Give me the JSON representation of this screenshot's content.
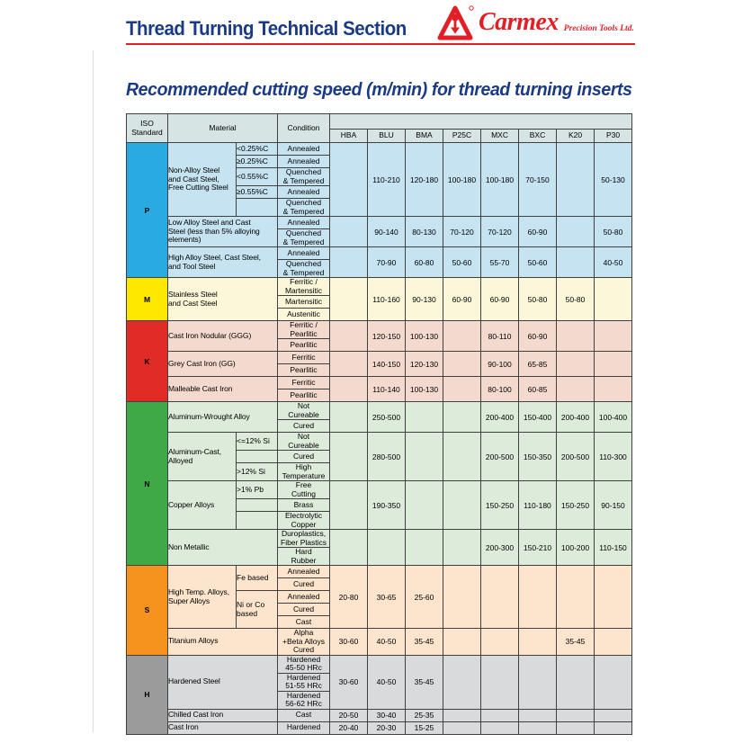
{
  "page": {
    "header": {
      "title": "Thread Turning Technical Section",
      "brand": "Carmex",
      "brand_suffix": "Precision Tools Ltd."
    },
    "section_title": "Recommended cutting speed (m/min) for thread turning inserts"
  },
  "colors": {
    "title_navy": "#1a3a85",
    "brand_red": "#e21f26",
    "header_cell_bg": "#d6e4e3",
    "grid_border": "#404040"
  },
  "table": {
    "headers": {
      "iso": "ISO\nStandard",
      "material": "Material",
      "condition": "Condition"
    },
    "grades": [
      "HBA",
      "BLU",
      "BMA",
      "P25C",
      "MXC",
      "BXC",
      "K20",
      "P30"
    ],
    "sections": [
      {
        "letter": "P",
        "color": "#29abe2",
        "tint": "#c6e3f2",
        "groups": [
          {
            "material": "Non-Alloy Steel\nand Cast Steel,\nFree Cutting Steel",
            "spec_col": true,
            "rows": [
              {
                "spec": "<0.25%C",
                "cond": "Annealed"
              },
              {
                "spec": "≥0.25%C",
                "cond": "Annealed"
              },
              {
                "spec": "<0.55%C",
                "cond": "Quenched\n& Tempered"
              },
              {
                "spec": "≥0.55%C",
                "cond": "Annealed"
              },
              {
                "spec": "",
                "cond": "Quenched\n& Tempered"
              }
            ],
            "values": [
              "",
              "110-210",
              "120-180",
              "100-180",
              "100-180",
              "70-150",
              "",
              "50-130"
            ]
          },
          {
            "material": "Low Alloy Steel and Cast\nSteel (less than 5% alloying\nelements)",
            "spec_col": false,
            "rows": [
              {
                "cond": "Annealed"
              },
              {
                "cond": "Quenched\n& Tempered"
              }
            ],
            "values": [
              "",
              "90-140",
              "80-130",
              "70-120",
              "70-120",
              "60-90",
              "",
              "50-80"
            ]
          },
          {
            "material": "High Alloy Steel, Cast Steel,\nand Tool Steel",
            "spec_col": false,
            "rows": [
              {
                "cond": "Annealed"
              },
              {
                "cond": "Quenched\n& Tempered"
              }
            ],
            "values": [
              "",
              "70-90",
              "60-80",
              "50-60",
              "55-70",
              "50-60",
              "",
              "40-50"
            ]
          }
        ]
      },
      {
        "letter": "M",
        "color": "#ffe800",
        "tint": "#fbf7d8",
        "groups": [
          {
            "material": "Stainless Steel\nand Cast Steel",
            "spec_col": false,
            "rows": [
              {
                "cond": "Ferritic /\nMartensitic"
              },
              {
                "cond": "Martensitic"
              },
              {
                "cond": "Austenitic"
              }
            ],
            "values": [
              "",
              "110-160",
              "90-130",
              "60-90",
              "60-90",
              "50-80",
              "50-80",
              ""
            ]
          }
        ]
      },
      {
        "letter": "K",
        "color": "#e02b26",
        "tint": "#f4dace",
        "groups": [
          {
            "material": "Cast Iron Nodular (GGG)",
            "spec_col": false,
            "rows": [
              {
                "cond": "Ferritic /\nPearlitic"
              },
              {
                "cond": "Pearlitic"
              }
            ],
            "values": [
              "",
              "120-150",
              "100-130",
              "",
              "80-110",
              "60-90",
              "",
              ""
            ]
          },
          {
            "material": "Grey Cast Iron (GG)",
            "spec_col": false,
            "rows": [
              {
                "cond": "Ferritic"
              },
              {
                "cond": "Pearlitic"
              }
            ],
            "values": [
              "",
              "140-150",
              "120-130",
              "",
              "90-100",
              "65-85",
              "",
              ""
            ]
          },
          {
            "material": "Malleable Cast Iron",
            "spec_col": false,
            "rows": [
              {
                "cond": "Ferritic"
              },
              {
                "cond": "Pearlitic"
              }
            ],
            "values": [
              "",
              "110-140",
              "100-130",
              "",
              "80-100",
              "60-85",
              "",
              ""
            ]
          }
        ]
      },
      {
        "letter": "N",
        "color": "#3fa948",
        "tint": "#ddebda",
        "groups": [
          {
            "material": "Aluminum-Wrought Alloy",
            "spec_col": false,
            "rows": [
              {
                "cond": "Not\nCureable"
              },
              {
                "cond": "Cured"
              }
            ],
            "values": [
              "",
              "250-500",
              "",
              "",
              "200-400",
              "150-400",
              "200-400",
              "100-400"
            ]
          },
          {
            "material": "Aluminum-Cast,\nAlloyed",
            "spec_col": true,
            "rows": [
              {
                "spec": "<=12% Si",
                "cond": "Not\nCureable"
              },
              {
                "spec": "",
                "cond": "Cured"
              },
              {
                "spec": ">12% Si",
                "cond": "High\nTemperature"
              }
            ],
            "values": [
              "",
              "280-500",
              "",
              "",
              "200-500",
              "150-350",
              "200-500",
              "110-300"
            ]
          },
          {
            "material": "Copper Alloys",
            "spec_col": true,
            "rows": [
              {
                "spec": ">1% Pb",
                "cond": "Free\nCutting"
              },
              {
                "spec": "",
                "cond": "Brass"
              },
              {
                "spec": "",
                "cond": "Electrolytic\nCopper"
              }
            ],
            "values": [
              "",
              "190-350",
              "",
              "",
              "150-250",
              "110-180",
              "150-250",
              "90-150"
            ]
          },
          {
            "material": "Non Metallic",
            "spec_col": false,
            "rows": [
              {
                "cond": "Duroplastics,\nFiber Plastics"
              },
              {
                "cond": "Hard\nRubber"
              }
            ],
            "values": [
              "",
              "",
              "",
              "",
              "200-300",
              "150-210",
              "100-200",
              "110-150"
            ]
          }
        ]
      },
      {
        "letter": "S",
        "color": "#f6921e",
        "tint": "#fce5cc",
        "groups": [
          {
            "material": "High Temp. Alloys,\nSuper Alloys",
            "spec_col": true,
            "rows": [
              {
                "spec": "Fe based",
                "spec_span": 2,
                "cond": "Annealed"
              },
              {
                "spec": null,
                "cond": "Cured"
              },
              {
                "spec": "Ni or Co\nbased",
                "spec_span": 3,
                "cond": "Annealed"
              },
              {
                "spec": null,
                "cond": "Cured"
              },
              {
                "spec": null,
                "cond": "Cast"
              }
            ],
            "values": [
              "20-80",
              "30-65",
              "25-60",
              "",
              "",
              "",
              "",
              ""
            ]
          },
          {
            "material": "Titanium Alloys",
            "spec_col": false,
            "rows": [
              {
                "cond": "Alpha\n+Beta Alloys\nCured"
              }
            ],
            "values": [
              "30-60",
              "40-50",
              "35-45",
              "",
              "",
              "",
              "35-45",
              ""
            ]
          }
        ]
      },
      {
        "letter": "H",
        "color": "#9b9b9b",
        "tint": "#d9dadb",
        "groups": [
          {
            "material": "Hardened Steel",
            "spec_col": false,
            "rows": [
              {
                "cond": "Hardened\n45-50 HRc"
              },
              {
                "cond": "Hardened\n51-55 HRc"
              },
              {
                "cond": "Hardened\n56-62 HRc"
              }
            ],
            "values": [
              "30-60",
              "40-50",
              "35-45",
              "",
              "",
              "",
              "",
              ""
            ]
          },
          {
            "material": "Chilled Cast Iron",
            "spec_col": false,
            "rows": [
              {
                "cond": "Cast"
              }
            ],
            "values": [
              "20-50",
              "30-40",
              "25-35",
              "",
              "",
              "",
              "",
              ""
            ]
          },
          {
            "material": "Cast Iron",
            "spec_col": false,
            "rows": [
              {
                "cond": "Hardened"
              }
            ],
            "values": [
              "20-40",
              "20-30",
              "15-25",
              "",
              "",
              "",
              "",
              ""
            ]
          }
        ]
      }
    ]
  }
}
